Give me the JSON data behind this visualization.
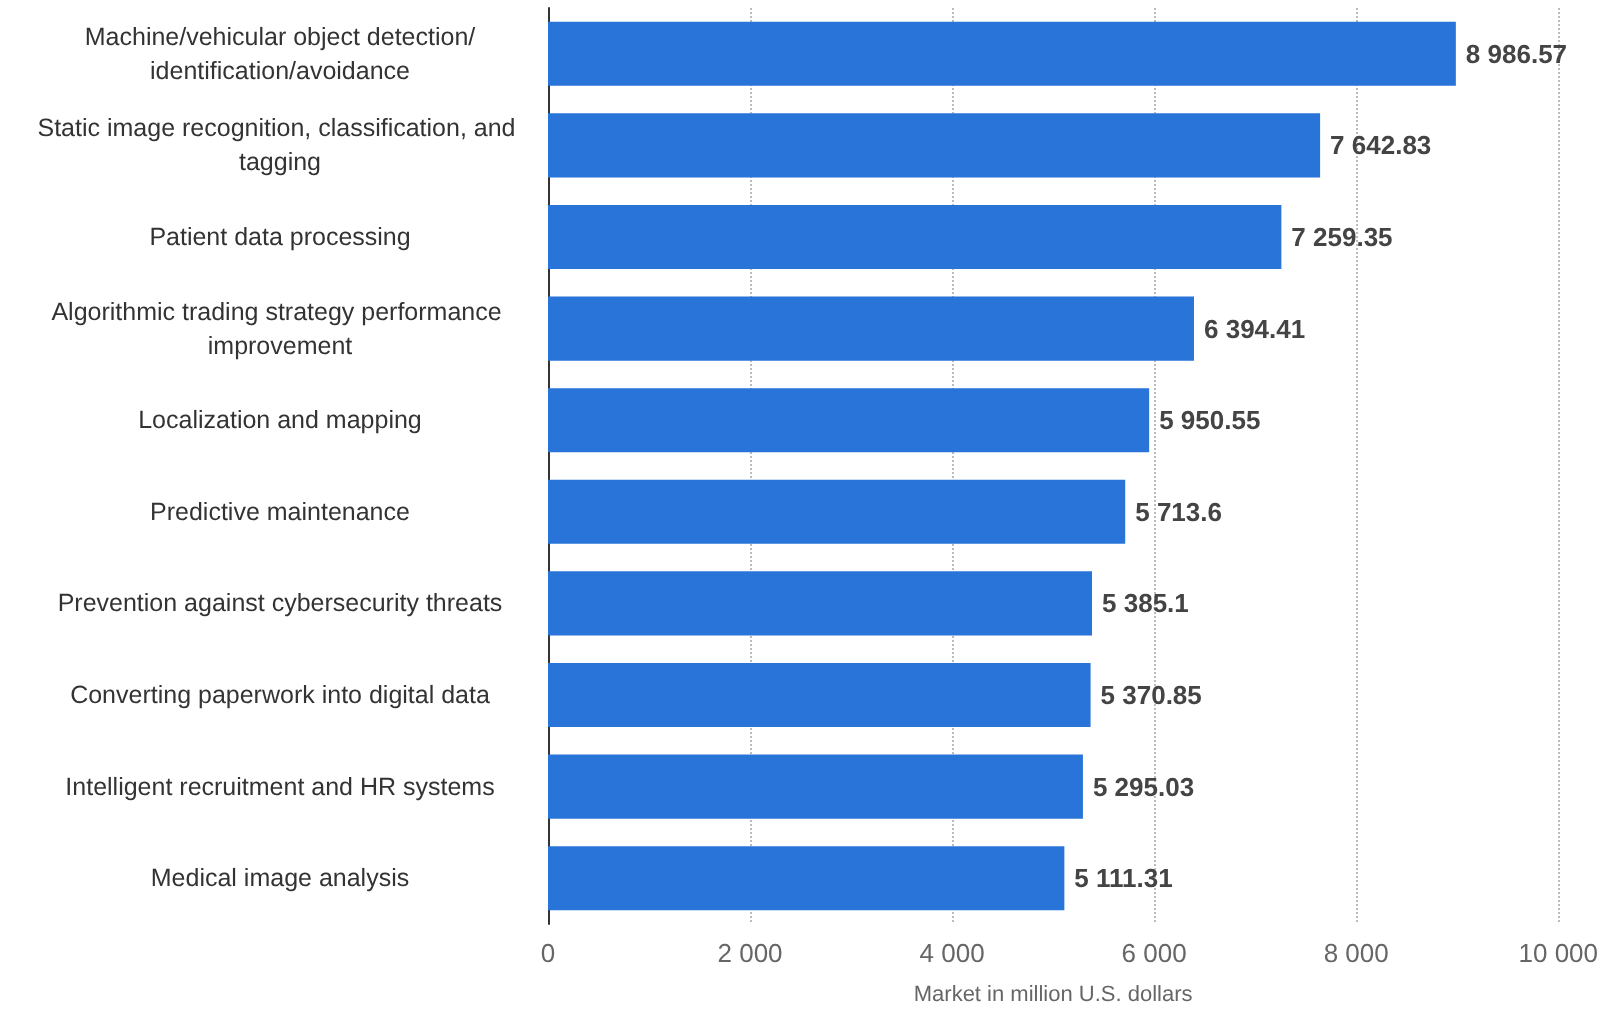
{
  "chart_data": {
    "type": "bar",
    "orientation": "horizontal",
    "xlabel": "Market in million U.S. dollars",
    "categories": [
      "Machine/vehicular object detection/identification/avoidance",
      "Static image recognition, classification, and tagging",
      "Patient data processing",
      "Algorithmic trading strategy performance improvement",
      "Localization and mapping",
      "Predictive maintenance",
      "Prevention against cybersecurity threats",
      "Converting paperwork into digital data",
      "Intelligent recruitment and HR systems",
      "Medical image analysis"
    ],
    "values": [
      8986.57,
      7642.83,
      7259.35,
      6394.41,
      5950.55,
      5713.6,
      5385.1,
      5370.85,
      5295.03,
      5111.31
    ],
    "value_labels": [
      "8 986.57",
      "7 642.83",
      "7 259.35",
      "6 394.41",
      "5 950.55",
      "5 713.6",
      "5 385.1",
      "5 370.85",
      "5 295.03",
      "5 111.31"
    ],
    "color": "#2874d9",
    "xlim": [
      0,
      10000
    ],
    "xticks": [
      {
        "value": 0,
        "label": "0"
      },
      {
        "value": 2000,
        "label": "2 000"
      },
      {
        "value": 4000,
        "label": "4 000"
      },
      {
        "value": 6000,
        "label": "6 000"
      },
      {
        "value": 8000,
        "label": "8 000"
      },
      {
        "value": 10000,
        "label": "10 000"
      }
    ],
    "grid": "x"
  }
}
